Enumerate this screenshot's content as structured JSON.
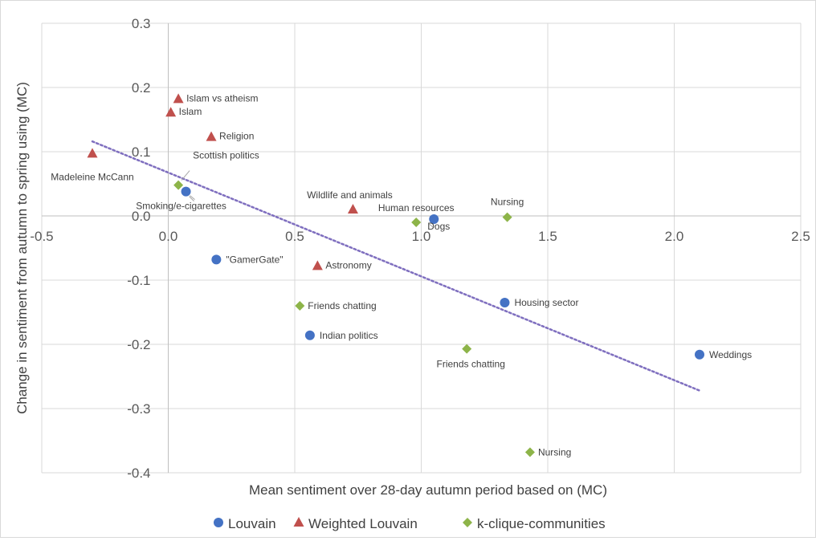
{
  "chart_data": {
    "type": "scatter",
    "title": "",
    "xlabel": "Mean sentiment over 28-day autumn period based on (MC)",
    "ylabel": "Change in sentiment from autumn to spring using (MC)",
    "xlim": [
      -0.5,
      2.5
    ],
    "ylim": [
      -0.4,
      0.3
    ],
    "x_ticks": [
      "-0.5",
      "0.0",
      "0.5",
      "1.0",
      "1.5",
      "2.0",
      "2.5"
    ],
    "y_ticks": [
      "0.3",
      "0.2",
      "0.1",
      "0.0",
      "-0.1",
      "-0.2",
      "-0.3",
      "-0.4"
    ],
    "grid": true,
    "legend_position": "bottom",
    "series": [
      {
        "name": "Louvain",
        "color": "#4472C4",
        "marker": "circle",
        "points": [
          {
            "x": 0.07,
            "y": 0.038,
            "label": "Smoking/e-cigarettes"
          },
          {
            "x": 0.19,
            "y": -0.068,
            "label": "\"GamerGate\""
          },
          {
            "x": 0.56,
            "y": -0.186,
            "label": "Indian politics"
          },
          {
            "x": 1.05,
            "y": -0.005,
            "label": "Dogs"
          },
          {
            "x": 1.33,
            "y": -0.135,
            "label": "Housing sector"
          },
          {
            "x": 2.1,
            "y": -0.216,
            "label": "Weddings"
          }
        ]
      },
      {
        "name": "Weighted Louvain",
        "color": "#C0504D",
        "marker": "triangle",
        "points": [
          {
            "x": -0.3,
            "y": 0.097,
            "label": "Madeleine McCann"
          },
          {
            "x": 0.01,
            "y": 0.161,
            "label": "Islam"
          },
          {
            "x": 0.04,
            "y": 0.182,
            "label": "Islam vs atheism"
          },
          {
            "x": 0.17,
            "y": 0.123,
            "label": "Religion"
          },
          {
            "x": 0.73,
            "y": 0.01,
            "label": "Wildlife and animals"
          },
          {
            "x": 0.59,
            "y": -0.078,
            "label": "Astronomy"
          }
        ]
      },
      {
        "name": "k-clique-communities",
        "color": "#8DB449",
        "marker": "diamond",
        "points": [
          {
            "x": 0.04,
            "y": 0.048,
            "label": "Scottish politics"
          },
          {
            "x": 0.98,
            "y": -0.01,
            "label": "Human resources"
          },
          {
            "x": 1.34,
            "y": -0.002,
            "label": "Nursing"
          },
          {
            "x": 0.52,
            "y": -0.14,
            "label": "Friends chatting"
          },
          {
            "x": 1.18,
            "y": -0.207,
            "label": "Friends chatting"
          },
          {
            "x": 1.43,
            "y": -0.368,
            "label": "Nursing"
          }
        ]
      }
    ],
    "trendline": {
      "style": "dotted",
      "color": "#7F6FBF",
      "x": [
        -0.3,
        2.1
      ],
      "y": [
        0.116,
        -0.272
      ]
    }
  }
}
